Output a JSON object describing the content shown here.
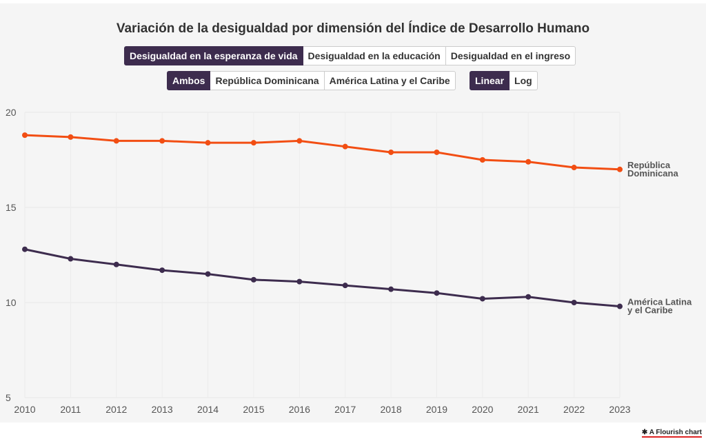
{
  "chart_data": {
    "type": "line",
    "title": "Variación de la desigualdad por dimensión del Índice de Desarrollo Humano",
    "x": [
      2010,
      2011,
      2012,
      2013,
      2014,
      2015,
      2016,
      2017,
      2018,
      2019,
      2020,
      2021,
      2022,
      2023
    ],
    "series": [
      {
        "name": "República Dominicana",
        "color": "#f24e13",
        "values": [
          18.8,
          18.7,
          18.5,
          18.5,
          18.4,
          18.4,
          18.5,
          18.2,
          17.9,
          17.9,
          17.5,
          17.4,
          17.1,
          17.0
        ]
      },
      {
        "name": "América Latina y el Caribe",
        "color": "#3d2c4e",
        "values": [
          12.8,
          12.3,
          12.0,
          11.7,
          11.5,
          11.2,
          11.1,
          10.9,
          10.7,
          10.5,
          10.2,
          10.3,
          10.0,
          9.8
        ]
      }
    ],
    "ylim": [
      5,
      20
    ],
    "yticks": [
      5,
      10,
      15,
      20
    ],
    "xlabel": "",
    "ylabel": "",
    "grid": true,
    "legend": "line-end labels"
  },
  "controls": {
    "dimension_tabs": [
      "Desigualdad en la esperanza de vida",
      "Desigualdad en la educación",
      "Desigualdad en el ingreso"
    ],
    "dimension_selected": 0,
    "region_tabs": [
      "Ambos",
      "República Dominicana",
      "América Latina y el Caribe"
    ],
    "region_selected": 0,
    "scale_tabs": [
      "Linear",
      "Log"
    ],
    "scale_selected": 0
  },
  "series_labels": [
    [
      "República",
      "Dominicana"
    ],
    [
      "América Latina",
      "y el Caribe"
    ]
  ],
  "footer": {
    "text": "A Flourish chart",
    "icon": "flourish-asterisk-icon"
  }
}
